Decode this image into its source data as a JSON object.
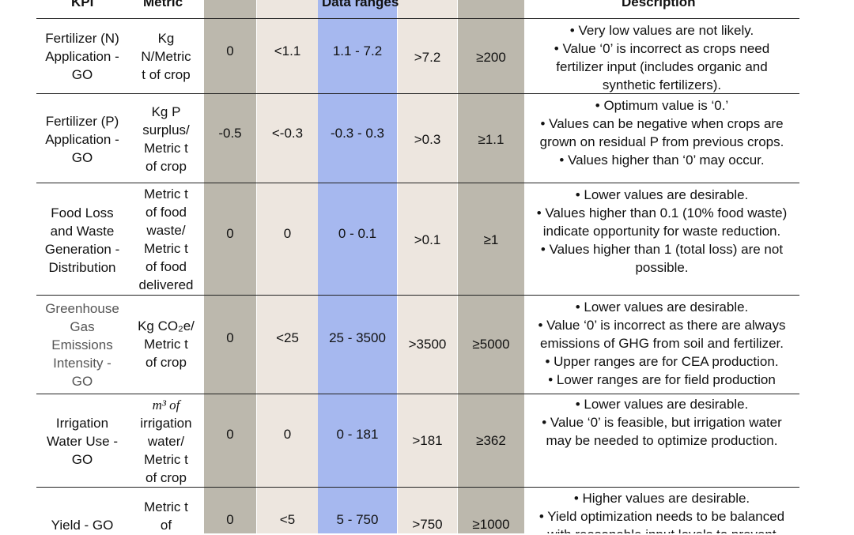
{
  "header": {
    "kpi": "KPI",
    "metric": "Metric",
    "data_ranges": "Data ranges",
    "description": "Description"
  },
  "rows": [
    {
      "kpi": [
        "Fertilizer (N)",
        "Application -",
        "GO"
      ],
      "metric": [
        "Kg",
        "N/Metric",
        "t of crop"
      ],
      "ranges": [
        "0",
        "<1.1",
        "1.1 - 7.2",
        ">7.2",
        "≥200"
      ],
      "desc": [
        "• Very low values are not likely.",
        "• Value ‘0’ is incorrect as crops need",
        "fertilizer input (includes organic and",
        "synthetic fertilizers)."
      ]
    },
    {
      "kpi": [
        "Fertilizer (P)",
        "Application -",
        "GO"
      ],
      "metric": [
        "Kg P",
        "surplus/",
        "Metric t",
        "of crop"
      ],
      "ranges": [
        "-0.5",
        "<-0.3",
        "-0.3 - 0.3",
        ">0.3",
        "≥1.1"
      ],
      "desc": [
        "• Optimum value is ‘0.’",
        "• Values can be negative when crops are",
        "grown on residual P from previous crops.",
        "• Values higher than ‘0’ may occur."
      ]
    },
    {
      "kpi": [
        "Food Loss",
        "and Waste",
        "Generation -",
        "Distribution"
      ],
      "metric": [
        "Metric t",
        "of food",
        "waste/",
        "Metric t",
        "of food",
        "delivered"
      ],
      "ranges": [
        "0",
        "0",
        "0 - 0.1",
        ">0.1",
        "≥1"
      ],
      "desc": [
        "• Lower values are desirable.",
        "• Values higher than 0.1 (10% food waste)",
        "indicate opportunity for waste reduction.",
        "• Values higher than 1 (total loss) are not",
        "possible."
      ]
    },
    {
      "kpi": [
        "Greenhouse",
        "Gas",
        "Emissions",
        "Intensity -",
        "GO"
      ],
      "metric": [
        "Kg CO₂e/",
        "Metric t",
        "of crop"
      ],
      "ranges": [
        "0",
        "<25",
        "25 - 3500",
        ">3500",
        "≥5000"
      ],
      "desc": [
        "• Lower values are desirable.",
        "• Value ‘0’ is incorrect as there are always",
        "emissions of GHG from soil and fertilizer.",
        "• Upper ranges are for CEA production.",
        "• Lower ranges are for field production"
      ]
    },
    {
      "kpi": [
        "Irrigation",
        "Water Use -",
        "GO"
      ],
      "metric": [
        "m³ of",
        "irrigation",
        "water/",
        "Metric t",
        "of crop"
      ],
      "ranges": [
        "0",
        "0",
        "0 - 181",
        ">181",
        "≥362"
      ],
      "desc": [
        "• Lower values are desirable.",
        "• Value ‘0’ is feasible, but irrigation water",
        "may be needed to optimize production."
      ]
    },
    {
      "kpi": [
        "Yield - GO"
      ],
      "metric": [
        "Metric t",
        "of"
      ],
      "ranges": [
        "0",
        "<5",
        "5 - 750",
        ">750",
        "≥1000"
      ],
      "desc": [
        "• Higher values are desirable.",
        "• Yield optimization needs to be balanced",
        "with reasonable input levels to prevent"
      ]
    }
  ],
  "colors": {
    "col_dark": "#bcb8ad",
    "col_light": "#ede6df",
    "col_blue": "#a6b8ef",
    "rule": "#222222"
  }
}
